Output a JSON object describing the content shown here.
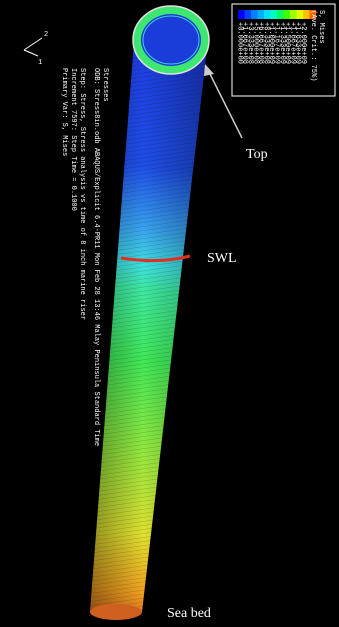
{
  "legend": {
    "title": "S, Mises",
    "subtitle": "(Ave. Crit.: 75%)",
    "values": [
      "+2.000e+09",
      "+1.833e+09",
      "+1.667e+09",
      "+1.500e+09",
      "+1.333e+09",
      "+1.167e+09",
      "+1.000e+09",
      "+8.333e+08",
      "+6.667e+08",
      "+5.000e+08",
      "+3.333e+08",
      "+1.667e+08",
      "+0.000e+00"
    ]
  },
  "triad": {
    "axis1": "1",
    "axis2": "2"
  },
  "info": {
    "line1": "Stresses",
    "line2": "ODB: Stress8in.odb    ABAQUS/Explicit 6.4-PR11    Mon Feb 28 13:46 Malay Peninsula Standard Time",
    "line3": "Step: Stress, Stress analysis vs time of 8 inch marine riser",
    "line4": "Increment    7597: Step Time =    0.1000",
    "line5": "Primary Var: S, Mises"
  },
  "labels": {
    "top": "Top",
    "swl": "SWL",
    "seabed": "Sea bed"
  }
}
